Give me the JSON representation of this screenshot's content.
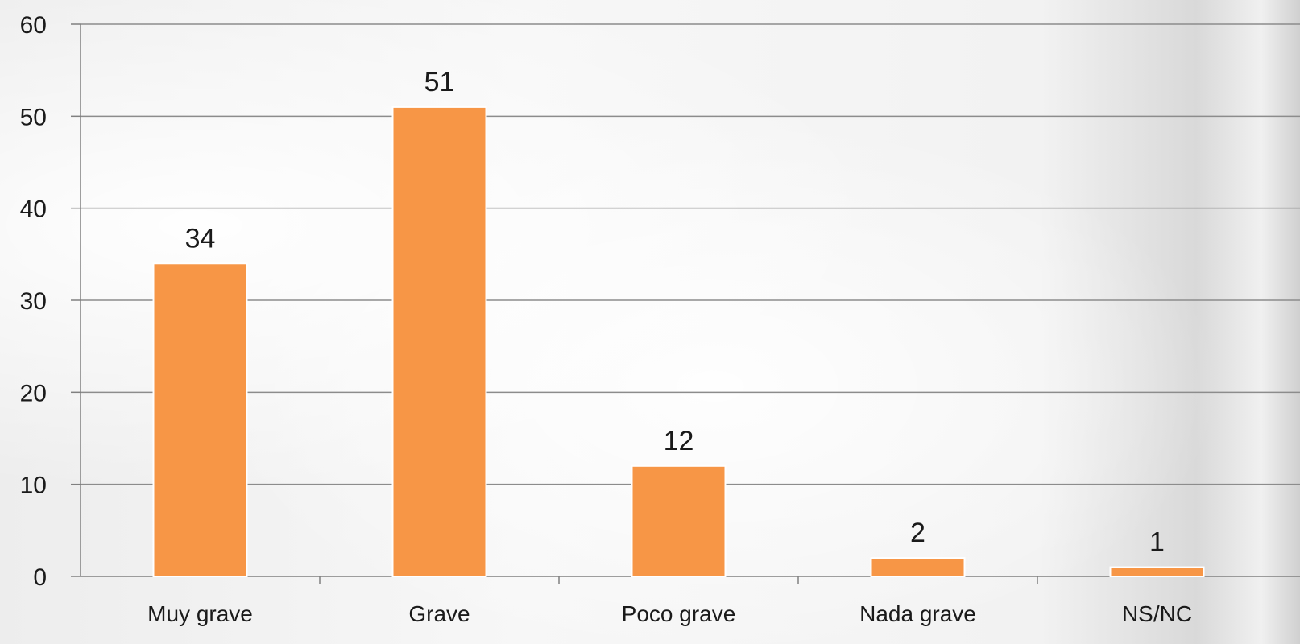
{
  "chart_data": {
    "type": "bar",
    "categories": [
      "Muy grave",
      "Grave",
      "Poco grave",
      "Nada grave",
      "NS/NC"
    ],
    "values": [
      34,
      51,
      12,
      2,
      1
    ],
    "data_labels": [
      "34",
      "51",
      "12",
      "2",
      "1"
    ],
    "yticks": [
      0,
      10,
      20,
      30,
      40,
      50,
      60
    ],
    "ylim": [
      0,
      60
    ],
    "title": "",
    "xlabel": "",
    "ylabel": "",
    "grid": true,
    "legend": "none",
    "colors": {
      "bar": "#f79646",
      "bar_edge": "#ffffff",
      "grid": "#8c8c8c",
      "axis": "#808080",
      "text": "#1a1a1a"
    }
  }
}
